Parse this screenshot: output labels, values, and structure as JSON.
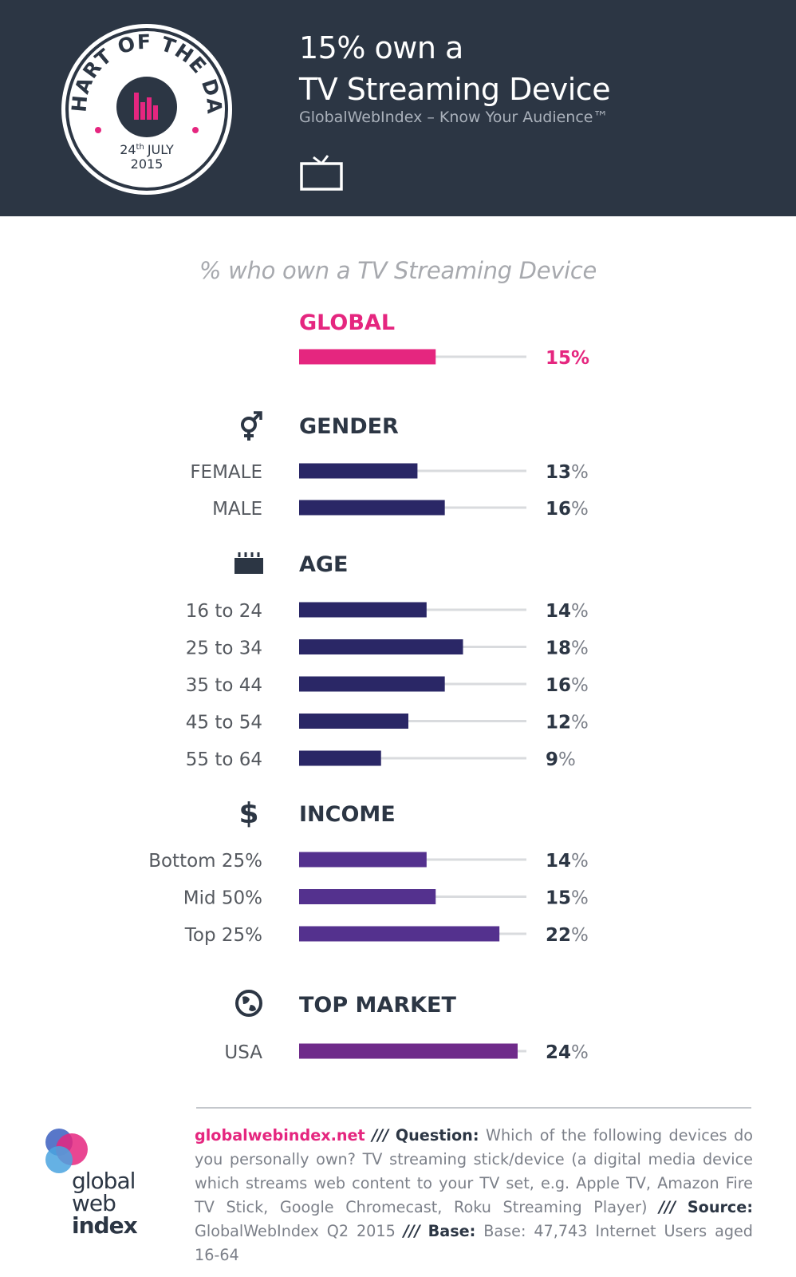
{
  "header": {
    "badge_arc_text": "CHART OF THE DAY",
    "badge_day": "24",
    "badge_day_suffix": "th",
    "badge_month": "JULY",
    "badge_year": "2015",
    "title_line1": "15% own a",
    "title_line2": "TV Streaming Device",
    "subtitle": "GlobalWebIndex – Know Your Audience™",
    "icon": "tv-icon"
  },
  "colors": {
    "header_bg": "#2c3644",
    "global": "#e5267f",
    "gender": "#2a2766",
    "age": "#2a2766",
    "income": "#54318e",
    "market": "#6f2b8a",
    "track": "#d9dbde"
  },
  "chart_data": {
    "type": "bar",
    "orientation": "horizontal",
    "title": "% who own a TV Streaming Device",
    "xlim": [
      0,
      25
    ],
    "groups": [
      {
        "id": "global",
        "heading": "GLOBAL",
        "icon": "",
        "color": "#e5267f",
        "bars": [
          {
            "label": "",
            "value": 15,
            "value_label": "15",
            "unit": "%"
          }
        ]
      },
      {
        "id": "gender",
        "heading": "GENDER",
        "icon": "gender-icon",
        "color": "#2a2766",
        "bars": [
          {
            "label": "FEMALE",
            "value": 13,
            "value_label": "13",
            "unit": "%"
          },
          {
            "label": "MALE",
            "value": 16,
            "value_label": "16",
            "unit": "%"
          }
        ]
      },
      {
        "id": "age",
        "heading": "AGE",
        "icon": "age-icon",
        "color": "#2a2766",
        "bars": [
          {
            "label": "16 to 24",
            "value": 14,
            "value_label": "14",
            "unit": "%"
          },
          {
            "label": "25 to 34",
            "value": 18,
            "value_label": "18",
            "unit": "%"
          },
          {
            "label": "35 to 44",
            "value": 16,
            "value_label": "16",
            "unit": "%"
          },
          {
            "label": "45 to 54",
            "value": 12,
            "value_label": "12",
            "unit": "%"
          },
          {
            "label": "55 to 64",
            "value": 9,
            "value_label": "9",
            "unit": "%"
          }
        ]
      },
      {
        "id": "income",
        "heading": "INCOME",
        "icon": "dollar-icon",
        "color": "#54318e",
        "bars": [
          {
            "label": "Bottom 25%",
            "value": 14,
            "value_label": "14",
            "unit": "%"
          },
          {
            "label": "Mid 50%",
            "value": 15,
            "value_label": "15",
            "unit": "%"
          },
          {
            "label": "Top 25%",
            "value": 22,
            "value_label": "22",
            "unit": "%"
          }
        ]
      },
      {
        "id": "market",
        "heading": "TOP MARKET",
        "icon": "globe-icon",
        "color": "#6f2b8a",
        "bars": [
          {
            "label": "USA",
            "value": 24,
            "value_label": "24",
            "unit": "%"
          }
        ]
      }
    ]
  },
  "footer": {
    "site": "globalwebindex.net",
    "sep": "///",
    "question_label": "Question:",
    "question": "Which of the following devices do you personally own? TV streaming stick/device (a digital media device which streams web content to your TV set, e.g. Apple TV, Amazon Fire TV Stick, Google Chromecast, Roku Streaming Player)",
    "source_label": "Source:",
    "source": "GlobalWebIndex Q2 2015",
    "base_label": "Base:",
    "base": "Base: 47,743 Internet Users aged 16-64",
    "logo_line1": "global",
    "logo_line2": "web",
    "logo_line3": "index"
  }
}
